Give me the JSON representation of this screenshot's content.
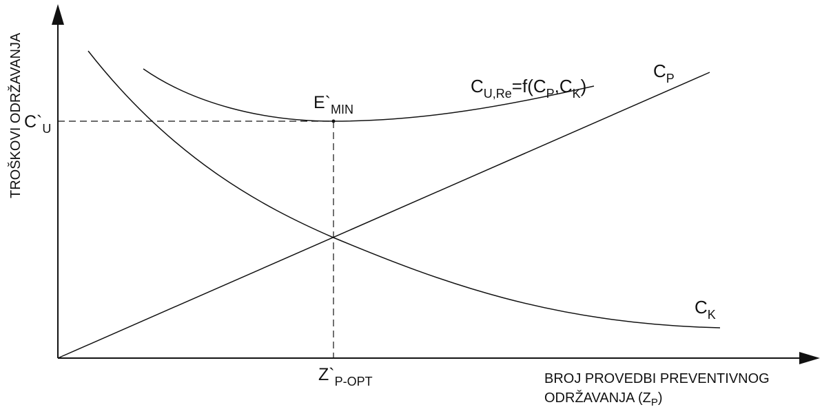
{
  "y_axis_title": "TROŠKOVI ODRŽAVANJA",
  "x_axis_title": {
    "line1": "BROJ PROVEDBI PREVENTIVNOG",
    "line2_main": "ODRŽAVANJA (Z",
    "line2_sub": "P",
    "line2_end": ")"
  },
  "y_tick": {
    "main": "C`",
    "sub": "U"
  },
  "x_tick": {
    "main": "Z`",
    "sub": "P-OPT"
  },
  "min_point": {
    "main": "E`",
    "sub": "MIN"
  },
  "curves": {
    "total": {
      "c": "C",
      "sub1": "U,Re",
      "eq": "=f(C",
      "sub2": "P",
      "comma": ",C",
      "sub3": "K",
      "close": ")"
    },
    "preventive": {
      "main": "C",
      "sub": "P"
    },
    "corrective": {
      "main": "C",
      "sub": "K"
    }
  },
  "colors": {
    "ink": "#111111",
    "background": "#ffffff"
  }
}
